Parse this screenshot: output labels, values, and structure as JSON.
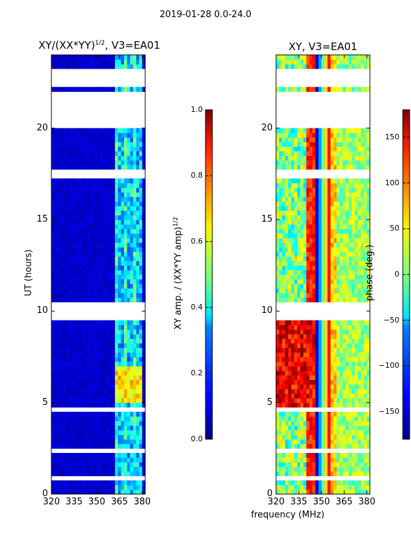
{
  "suptitle": "2019-01-28 0.0-24.0",
  "panels": {
    "left_title": "XY/(XX*YY)",
    "left_title_sup": "1/2",
    "left_title_suffix": ", V3=EA01",
    "right_title": "XY, V3=EA01"
  },
  "axis_labels": {
    "ylabel": "UT (hours)",
    "xlabel": "frequency (MHz)",
    "cbar_left_label": "XY amp. / (XX*YY amp)",
    "cbar_left_label_sup": "1/2",
    "cbar_right_label": "phase (deg.)"
  },
  "colors": {
    "background": "#ffffff",
    "axis": "#000000",
    "jet_low": "#00007f",
    "jet_high": "#7f0000"
  },
  "chart_data": [
    {
      "type": "heatmap",
      "title": "XY/(XX*YY)^1/2, V3=EA01",
      "xlabel": "",
      "ylabel": "UT (hours)",
      "x_range": [
        320,
        382
      ],
      "y_range": [
        0,
        24
      ],
      "x_ticks": [
        320,
        335,
        350,
        365,
        380
      ],
      "y_ticks": [
        0,
        5,
        10,
        15,
        20
      ],
      "colormap": "jet",
      "colorbar": {
        "label": "XY amp. / (XX*YY amp)^1/2",
        "range": [
          0.0,
          1.0
        ],
        "ticks": [
          "0.0",
          "0.2",
          "0.4",
          "0.6",
          "0.8",
          "1.0"
        ]
      },
      "flagged_hours": [
        [
          21.1,
          22.1
        ],
        [
          22.3,
          23.2
        ],
        [
          17.2,
          17.7
        ],
        [
          20.1,
          21.0
        ],
        [
          9.6,
          10.5
        ],
        [
          0.8,
          1.0
        ],
        [
          2.3,
          2.5
        ],
        [
          4.6,
          4.8
        ]
      ],
      "active_band_mhz": [
        362,
        380
      ],
      "peak_region": {
        "hours": [
          5.0,
          7.0
        ],
        "mhz": [
          362,
          380
        ],
        "amplitude": 0.65
      },
      "typical_amplitude": 0.05
    },
    {
      "type": "heatmap",
      "title": "XY, V3=EA01",
      "xlabel": "frequency (MHz)",
      "ylabel": "",
      "x_range": [
        320,
        382
      ],
      "y_range": [
        0,
        24
      ],
      "x_ticks": [
        320,
        335,
        350,
        365,
        380
      ],
      "y_ticks": [
        0,
        5,
        10,
        15,
        20
      ],
      "colormap": "jet",
      "colorbar": {
        "label": "phase (deg.)",
        "range": [
          -180,
          180
        ],
        "ticks": [
          "−150",
          "−100",
          "−50",
          "0",
          "50",
          "100",
          "150"
        ]
      },
      "flagged_hours": [
        [
          21.1,
          22.1
        ],
        [
          22.3,
          23.2
        ],
        [
          17.2,
          17.7
        ],
        [
          20.1,
          21.0
        ],
        [
          9.6,
          10.5
        ],
        [
          0.8,
          1.0
        ],
        [
          2.3,
          2.5
        ],
        [
          4.6,
          4.8
        ]
      ],
      "phase_stripe_mhz": [
        347,
        355
      ],
      "high_phase_region": {
        "hours": [
          4.5,
          10.0
        ],
        "mhz": [
          320,
          345
        ],
        "phase_deg": 140
      }
    }
  ]
}
